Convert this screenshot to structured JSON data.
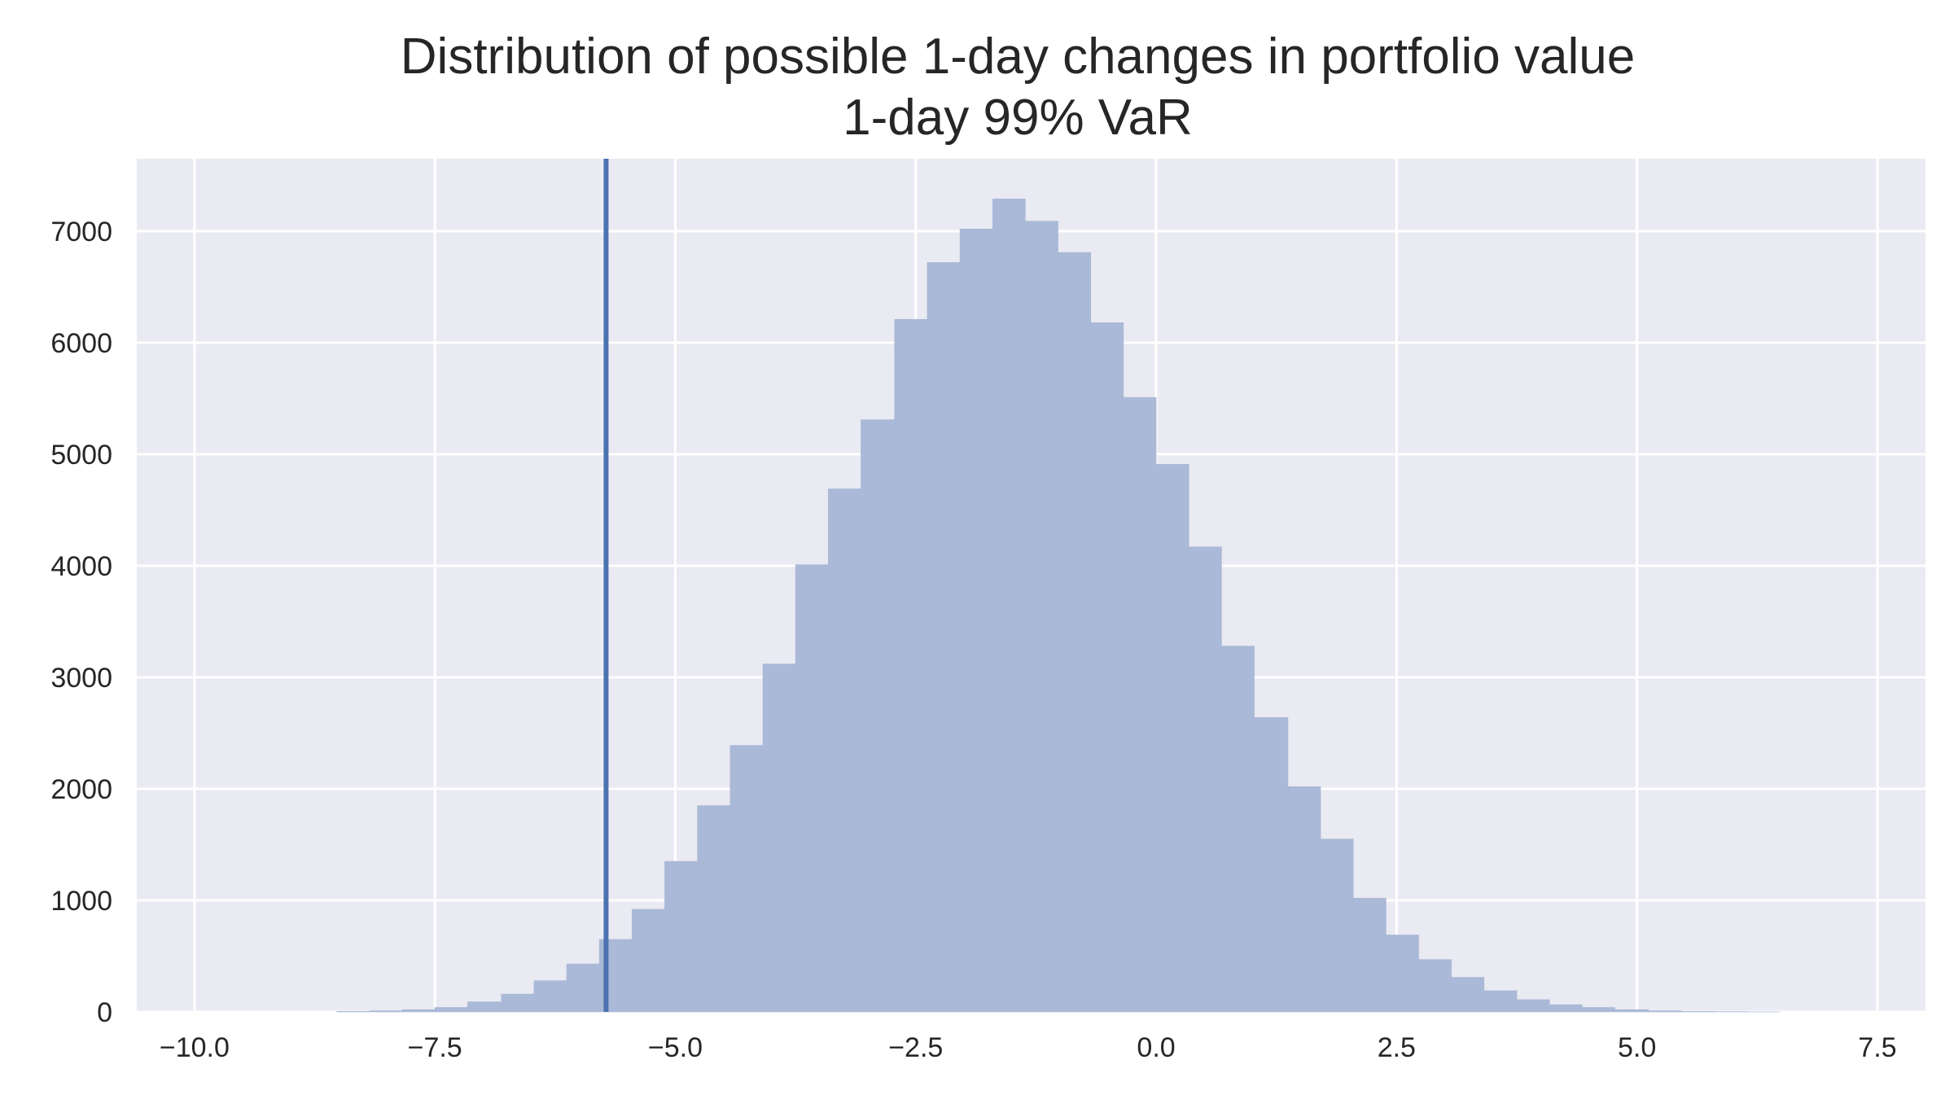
{
  "chart_data": {
    "type": "bar",
    "title_lines": [
      "Distribution of possible 1-day changes in portfolio value",
      "1-day 99% VaR"
    ],
    "xlabel": "",
    "ylabel": "",
    "xlim": [
      -10.6,
      8.0
    ],
    "ylim": [
      0,
      7650
    ],
    "x_ticks": [
      -10.0,
      -7.5,
      -5.0,
      -2.5,
      0.0,
      2.5,
      5.0,
      7.5
    ],
    "x_tick_labels": [
      "−10.0",
      "−7.5",
      "−5.0",
      "−2.5",
      "0.0",
      "2.5",
      "5.0",
      "7.5"
    ],
    "y_ticks": [
      0,
      1000,
      2000,
      3000,
      4000,
      5000,
      6000,
      7000
    ],
    "y_tick_labels": [
      "0",
      "1000",
      "2000",
      "3000",
      "4000",
      "5000",
      "6000",
      "7000"
    ],
    "grid": true,
    "bar_color": "#aab9d7",
    "line_color": "#4c72b0",
    "background_color": "#eaeaf2",
    "grid_color": "#ffffff",
    "histogram": {
      "bin_edges": [
        -8.52,
        -8.18,
        -7.84,
        -7.5,
        -7.16,
        -6.81,
        -6.47,
        -6.13,
        -5.79,
        -5.45,
        -5.11,
        -4.77,
        -4.43,
        -4.09,
        -3.75,
        -3.41,
        -3.07,
        -2.72,
        -2.38,
        -2.04,
        -1.7,
        -1.36,
        -1.02,
        -0.68,
        -0.34,
        0.0,
        0.34,
        0.68,
        1.02,
        1.37,
        1.71,
        2.05,
        2.39,
        2.73,
        3.07,
        3.41,
        3.75,
        4.09,
        4.43,
        4.77,
        5.12,
        5.46,
        5.8,
        6.14,
        6.48
      ],
      "counts": [
        5,
        10,
        20,
        40,
        90,
        160,
        280,
        430,
        650,
        920,
        1350,
        1850,
        2390,
        3120,
        4010,
        4690,
        5310,
        6210,
        6720,
        7020,
        7290,
        7090,
        6810,
        6180,
        5510,
        4910,
        4170,
        3280,
        2640,
        2020,
        1550,
        1020,
        690,
        470,
        310,
        190,
        110,
        65,
        40,
        20,
        10,
        5,
        3,
        1
      ]
    },
    "var_line_x": -5.72
  }
}
